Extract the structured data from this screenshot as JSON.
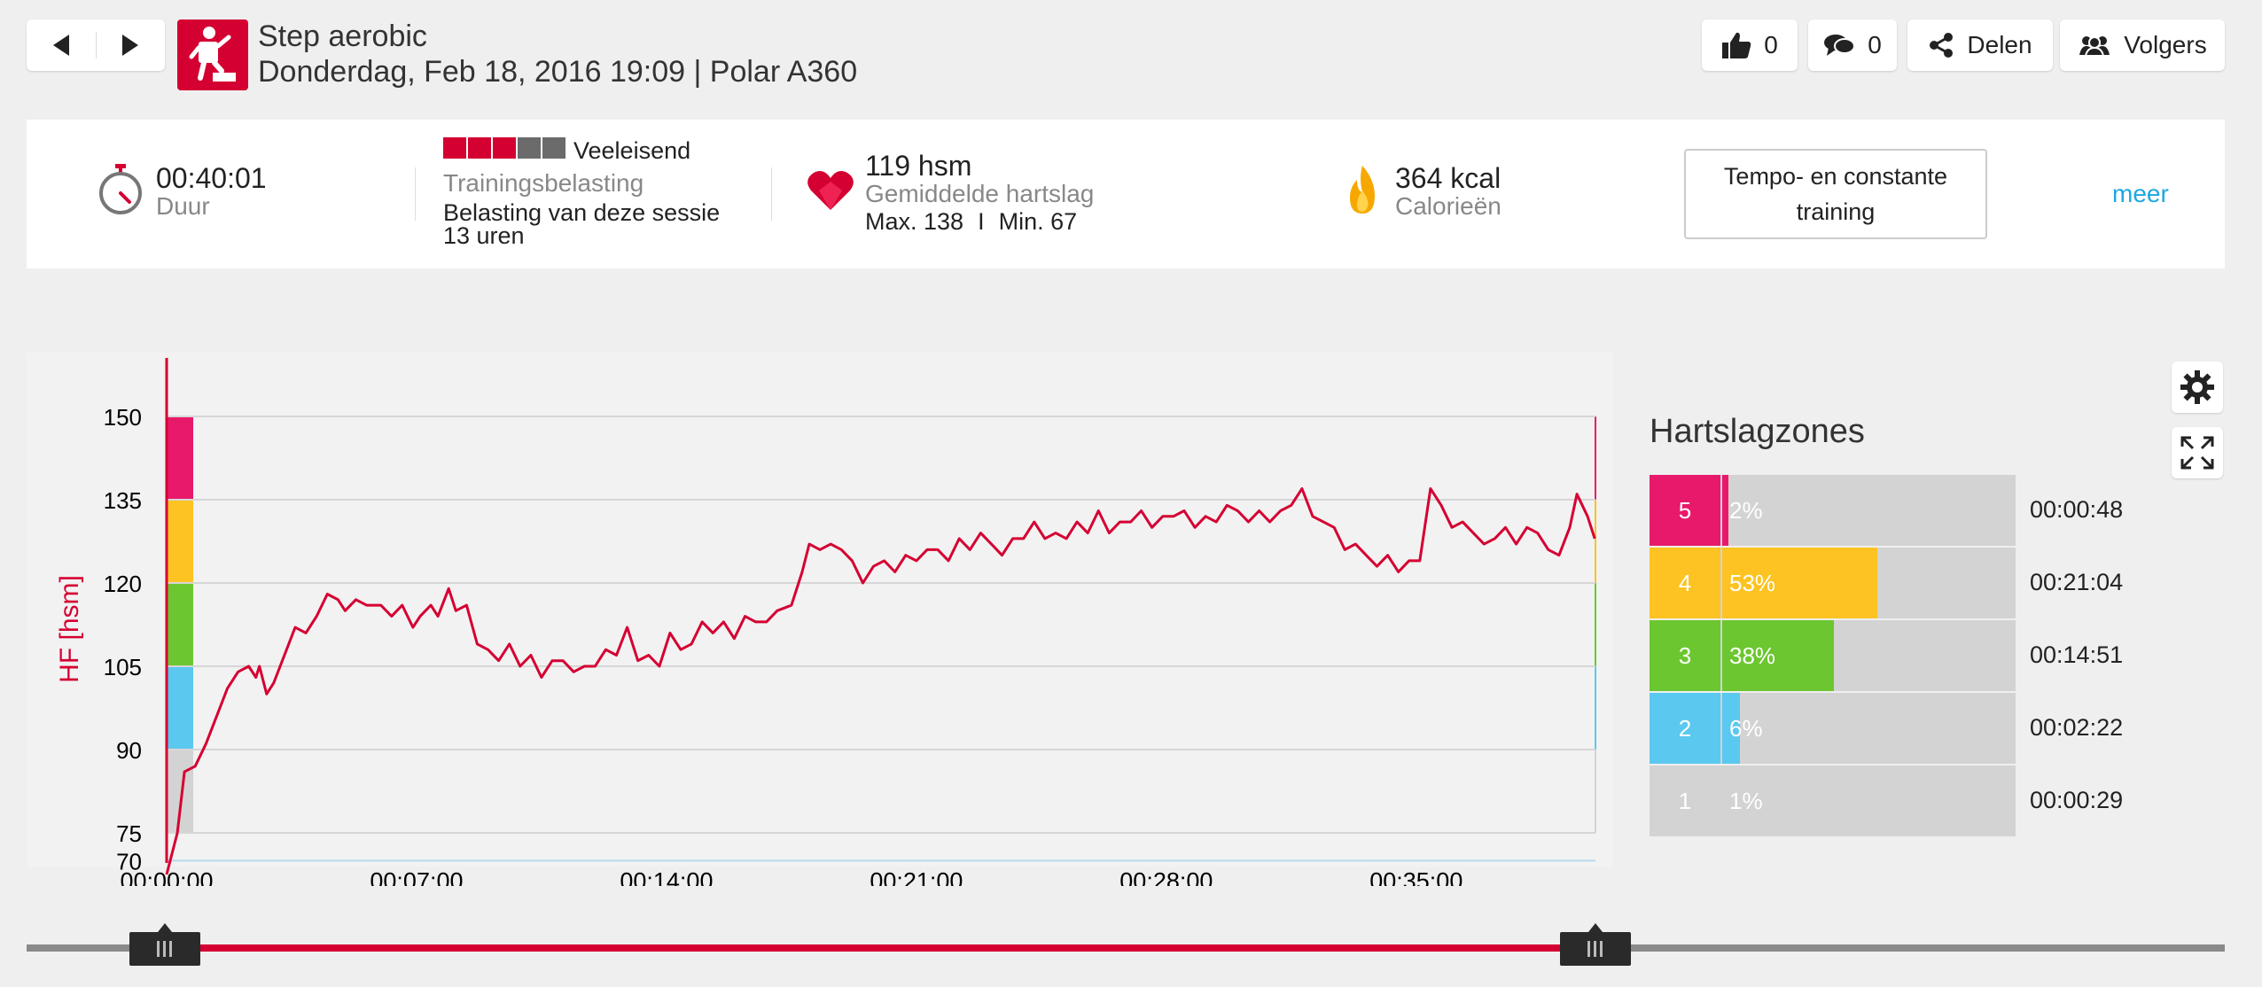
{
  "header": {
    "title": "Step aerobic",
    "subtitle": "Donderdag, Feb 18, 2016 19:09 | Polar A360",
    "likes": "0",
    "comments": "0",
    "share_label": "Delen",
    "followers_label": "Volgers",
    "accent_color": "#d50032"
  },
  "summary": {
    "duration": "00:40:01",
    "duration_label": "Duur",
    "load_level": "Veeleisend",
    "load_filled": 3,
    "load_total": 5,
    "load_label": "Trainingsbelasting",
    "load_session_label": "Belasting van deze sessie",
    "load_session_value": "13 uren",
    "heart_rate": "119 hsm",
    "heart_rate_label": "Gemiddelde hartslag",
    "hr_max": "Max. 138",
    "hr_separator": "I",
    "hr_min": "Min. 67",
    "calories": "364 kcal",
    "calories_label": "Calorieën",
    "training_type": "Tempo- en constante training",
    "more_label": "meer"
  },
  "chart_data": {
    "type": "line",
    "ylabel": "HF [hsm]",
    "ylim": [
      70,
      160
    ],
    "yticks": [
      150,
      135,
      120,
      105,
      90,
      75,
      70
    ],
    "xticks": [
      "00:00:00",
      "00:07:00",
      "00:14:00",
      "00:21:00",
      "00:28:00",
      "00:35:00"
    ],
    "xlim_minutes": [
      0,
      40.02
    ],
    "zone_colors": [
      "#d3d3d3",
      "#5bc8ef",
      "#6cc630",
      "#fcc322",
      "#e8196a"
    ],
    "series": [
      {
        "color": "#d50032",
        "points": [
          [
            0.0,
            67
          ],
          [
            0.3,
            75
          ],
          [
            0.5,
            86
          ],
          [
            0.8,
            87
          ],
          [
            1.1,
            91
          ],
          [
            1.4,
            96
          ],
          [
            1.7,
            101
          ],
          [
            2.0,
            104
          ],
          [
            2.3,
            105
          ],
          [
            2.5,
            103
          ],
          [
            2.6,
            105
          ],
          [
            2.8,
            100
          ],
          [
            3.0,
            102
          ],
          [
            3.3,
            107
          ],
          [
            3.6,
            112
          ],
          [
            3.9,
            111
          ],
          [
            4.2,
            114
          ],
          [
            4.5,
            118
          ],
          [
            4.8,
            117
          ],
          [
            5.0,
            115
          ],
          [
            5.3,
            117
          ],
          [
            5.6,
            116
          ],
          [
            6.0,
            116
          ],
          [
            6.3,
            114
          ],
          [
            6.6,
            116
          ],
          [
            6.9,
            112
          ],
          [
            7.1,
            114
          ],
          [
            7.4,
            116
          ],
          [
            7.6,
            114
          ],
          [
            7.9,
            119
          ],
          [
            8.1,
            115
          ],
          [
            8.4,
            116
          ],
          [
            8.7,
            109
          ],
          [
            9.0,
            108
          ],
          [
            9.3,
            106
          ],
          [
            9.6,
            109
          ],
          [
            9.9,
            105
          ],
          [
            10.2,
            107
          ],
          [
            10.5,
            103
          ],
          [
            10.8,
            106
          ],
          [
            11.1,
            106
          ],
          [
            11.4,
            104
          ],
          [
            11.7,
            105
          ],
          [
            12.0,
            105
          ],
          [
            12.3,
            108
          ],
          [
            12.6,
            107
          ],
          [
            12.9,
            112
          ],
          [
            13.2,
            106
          ],
          [
            13.5,
            107
          ],
          [
            13.8,
            105
          ],
          [
            14.1,
            111
          ],
          [
            14.4,
            108
          ],
          [
            14.7,
            109
          ],
          [
            15.0,
            113
          ],
          [
            15.3,
            111
          ],
          [
            15.6,
            113
          ],
          [
            15.9,
            110
          ],
          [
            16.2,
            114
          ],
          [
            16.5,
            113
          ],
          [
            16.8,
            113
          ],
          [
            17.1,
            115
          ],
          [
            17.5,
            116
          ],
          [
            17.8,
            122
          ],
          [
            18.0,
            127
          ],
          [
            18.3,
            126
          ],
          [
            18.6,
            127
          ],
          [
            18.9,
            126
          ],
          [
            19.2,
            124
          ],
          [
            19.5,
            120
          ],
          [
            19.8,
            123
          ],
          [
            20.1,
            124
          ],
          [
            20.4,
            122
          ],
          [
            20.7,
            125
          ],
          [
            21.0,
            124
          ],
          [
            21.3,
            126
          ],
          [
            21.6,
            126
          ],
          [
            21.9,
            124
          ],
          [
            22.2,
            128
          ],
          [
            22.5,
            126
          ],
          [
            22.8,
            129
          ],
          [
            23.1,
            127
          ],
          [
            23.4,
            125
          ],
          [
            23.7,
            128
          ],
          [
            24.0,
            128
          ],
          [
            24.3,
            131
          ],
          [
            24.6,
            128
          ],
          [
            24.9,
            129
          ],
          [
            25.2,
            128
          ],
          [
            25.5,
            131
          ],
          [
            25.8,
            129
          ],
          [
            26.1,
            133
          ],
          [
            26.4,
            129
          ],
          [
            26.7,
            131
          ],
          [
            27.0,
            131
          ],
          [
            27.3,
            133
          ],
          [
            27.6,
            130
          ],
          [
            27.9,
            132
          ],
          [
            28.2,
            132
          ],
          [
            28.5,
            133
          ],
          [
            28.8,
            130
          ],
          [
            29.1,
            132
          ],
          [
            29.4,
            131
          ],
          [
            29.7,
            134
          ],
          [
            30.0,
            133
          ],
          [
            30.3,
            131
          ],
          [
            30.6,
            133
          ],
          [
            30.9,
            131
          ],
          [
            31.2,
            133
          ],
          [
            31.5,
            134
          ],
          [
            31.8,
            137
          ],
          [
            32.1,
            132
          ],
          [
            32.4,
            131
          ],
          [
            32.7,
            130
          ],
          [
            33.0,
            126
          ],
          [
            33.3,
            127
          ],
          [
            33.6,
            125
          ],
          [
            33.9,
            123
          ],
          [
            34.2,
            125
          ],
          [
            34.5,
            122
          ],
          [
            34.8,
            124
          ],
          [
            35.1,
            124
          ],
          [
            35.4,
            137
          ],
          [
            35.7,
            134
          ],
          [
            36.0,
            130
          ],
          [
            36.3,
            131
          ],
          [
            36.6,
            129
          ],
          [
            36.9,
            127
          ],
          [
            37.2,
            128
          ],
          [
            37.5,
            130
          ],
          [
            37.8,
            127
          ],
          [
            38.1,
            130
          ],
          [
            38.4,
            129
          ],
          [
            38.7,
            126
          ],
          [
            39.0,
            125
          ],
          [
            39.3,
            130
          ],
          [
            39.5,
            136
          ],
          [
            39.8,
            132
          ],
          [
            40.0,
            128
          ]
        ]
      }
    ]
  },
  "zones": {
    "title": "Hartslagzones",
    "items": [
      {
        "zone": "5",
        "percent": "2%",
        "fraction": 0.02,
        "time": "00:00:48",
        "color": "#e8196a"
      },
      {
        "zone": "4",
        "percent": "53%",
        "fraction": 0.53,
        "time": "00:21:04",
        "color": "#fcc322"
      },
      {
        "zone": "3",
        "percent": "38%",
        "fraction": 0.38,
        "time": "00:14:51",
        "color": "#6cc630"
      },
      {
        "zone": "2",
        "percent": "6%",
        "fraction": 0.06,
        "time": "00:02:22",
        "color": "#5bc8ef"
      },
      {
        "zone": "1",
        "percent": "1%",
        "fraction": 0.01,
        "time": "00:00:29",
        "color": "#d3d3d3"
      }
    ]
  },
  "icons": {
    "prev": "chevron-left-icon",
    "next": "chevron-right-icon",
    "settings": "gear-icon",
    "fullscreen": "expand-icon"
  }
}
